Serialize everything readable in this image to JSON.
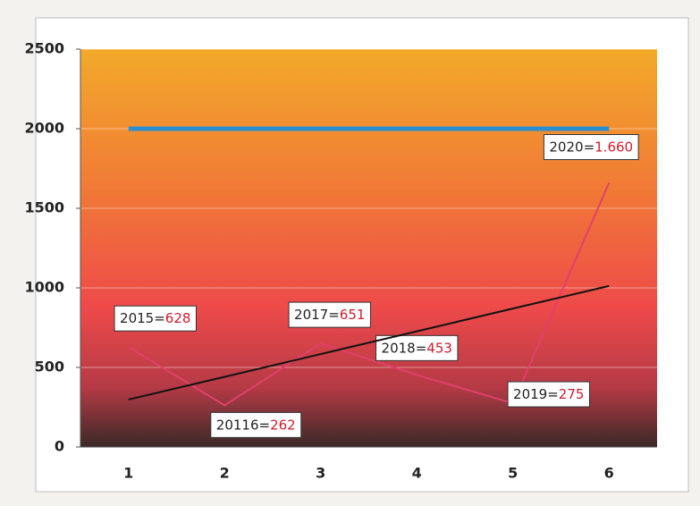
{
  "chart_data": {
    "type": "line",
    "categories": [
      "1",
      "2",
      "3",
      "4",
      "5",
      "6"
    ],
    "series": [
      {
        "color": "#e0406a",
        "values": [
          628,
          262,
          651,
          453,
          275,
          1660
        ],
        "point_labels": [
          "2015=",
          "20116=",
          "2017=",
          "2018=",
          "2019=",
          "2020="
        ],
        "value_labels": [
          "628",
          "262",
          "651",
          "453",
          "275",
          "1.660"
        ]
      },
      {
        "color": "#2a8fd0",
        "values": [
          2000,
          2000,
          2000,
          2000,
          2000,
          2000
        ]
      },
      {
        "color": "#111111",
        "values": [
          298,
          441,
          584,
          727,
          870,
          1012
        ]
      }
    ],
    "ylim": [
      0,
      2500
    ],
    "yticks": [
      0,
      500,
      1000,
      1500,
      2000,
      2500
    ],
    "grid": true
  }
}
